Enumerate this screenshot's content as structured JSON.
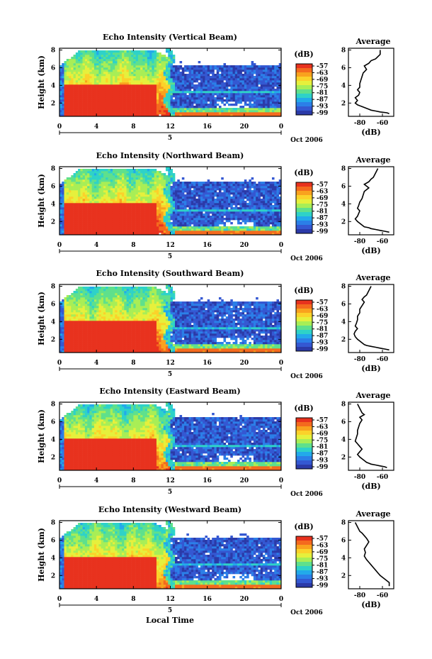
{
  "figure": {
    "xlabel": "Local Time",
    "date_label": "Oct 2006",
    "day_label": "5"
  },
  "colorbar": {
    "unit": "(dB)",
    "ticks": [
      "-57",
      "-63",
      "-69",
      "-75",
      "-81",
      "-87",
      "-93",
      "-99"
    ],
    "colors": [
      "#e8321e",
      "#f46a1e",
      "#f9a21e",
      "#fbd22a",
      "#e6f03c",
      "#a8ee56",
      "#5fe08c",
      "#2ed2c8",
      "#22aaea",
      "#2b7fe8",
      "#3458d2",
      "#2b3aa8"
    ]
  },
  "chart_data": [
    {
      "type": "heatmap",
      "title": "Echo Intensity (Vertical Beam)",
      "ylabel": "Height (km)",
      "x_ticks": [
        "0",
        "4",
        "8",
        "12",
        "16",
        "20",
        "0"
      ],
      "y_ticks": [
        "8",
        "6",
        "4",
        "2"
      ],
      "xlim": [
        0,
        24
      ],
      "ylim": [
        0.5,
        8.2
      ],
      "profile": {
        "title": "Average",
        "xlabel": "(dB)",
        "x_ticks": [
          "-80",
          "-60"
        ],
        "y_ticks": [
          "8",
          "6",
          "4",
          "2"
        ],
        "xlim": [
          -90,
          -50
        ],
        "ylim": [
          0.5,
          8.2
        ],
        "x": [
          -62,
          -62,
          -66,
          -70,
          -72,
          -76,
          -74,
          -77,
          -78,
          -79,
          -80,
          -80,
          -82,
          -80,
          -81,
          -84,
          -82,
          -84,
          -82,
          -78,
          -74,
          -72,
          -70,
          -66,
          -62,
          -56,
          -54
        ],
        "y": [
          8.0,
          7.5,
          7.0,
          6.8,
          6.5,
          6.2,
          5.8,
          5.4,
          5.0,
          4.6,
          4.2,
          3.8,
          3.5,
          3.2,
          2.9,
          2.6,
          2.3,
          2.0,
          1.8,
          1.6,
          1.4,
          1.3,
          1.2,
          1.1,
          1.0,
          0.9,
          0.8
        ]
      }
    },
    {
      "type": "heatmap",
      "title": "Echo Intensity (Northward Beam)",
      "ylabel": "Height (km)",
      "x_ticks": [
        "0",
        "4",
        "8",
        "12",
        "16",
        "20",
        "0"
      ],
      "y_ticks": [
        "8",
        "6",
        "4",
        "2"
      ],
      "xlim": [
        0,
        24
      ],
      "ylim": [
        0.5,
        8.2
      ],
      "profile": {
        "title": "Average",
        "xlabel": "(dB)",
        "x_ticks": [
          "-80",
          "-60"
        ],
        "y_ticks": [
          "8",
          "6",
          "4",
          "2"
        ],
        "xlim": [
          -90,
          -50
        ],
        "ylim": [
          0.5,
          8.2
        ],
        "x": [
          -64,
          -66,
          -68,
          -70,
          -72,
          -76,
          -72,
          -76,
          -77,
          -78,
          -80,
          -81,
          -82,
          -80,
          -81,
          -82,
          -84,
          -82,
          -80,
          -78,
          -76,
          -72,
          -70,
          -66,
          -62,
          -58,
          -54
        ],
        "y": [
          8.0,
          7.5,
          7.0,
          6.8,
          6.5,
          6.2,
          5.8,
          5.4,
          5.0,
          4.6,
          4.2,
          3.8,
          3.5,
          3.2,
          2.9,
          2.6,
          2.3,
          2.0,
          1.8,
          1.6,
          1.4,
          1.3,
          1.2,
          1.1,
          1.0,
          0.9,
          0.8
        ]
      }
    },
    {
      "type": "heatmap",
      "title": "Echo Intensity (Southward Beam)",
      "ylabel": "Height (km)",
      "x_ticks": [
        "0",
        "4",
        "8",
        "12",
        "16",
        "20",
        "0"
      ],
      "y_ticks": [
        "8",
        "6",
        "4",
        "2"
      ],
      "xlim": [
        0,
        24
      ],
      "ylim": [
        0.5,
        8.2
      ],
      "profile": {
        "title": "Average",
        "xlabel": "(dB)",
        "x_ticks": [
          "-80",
          "-60"
        ],
        "y_ticks": [
          "8",
          "6",
          "4",
          "2"
        ],
        "xlim": [
          -90,
          -50
        ],
        "ylim": [
          0.5,
          8.2
        ],
        "x": [
          -70,
          -72,
          -74,
          -76,
          -78,
          -76,
          -78,
          -80,
          -80,
          -82,
          -82,
          -83,
          -84,
          -82,
          -84,
          -85,
          -84,
          -82,
          -80,
          -78,
          -76,
          -74,
          -70,
          -66,
          -62,
          -58,
          -54
        ],
        "y": [
          8.0,
          7.5,
          7.0,
          6.8,
          6.5,
          6.2,
          5.8,
          5.4,
          5.0,
          4.6,
          4.2,
          3.8,
          3.5,
          3.2,
          2.9,
          2.6,
          2.3,
          2.0,
          1.8,
          1.6,
          1.4,
          1.3,
          1.2,
          1.1,
          1.0,
          0.9,
          0.8
        ]
      }
    },
    {
      "type": "heatmap",
      "title": "Echo Intensity (Eastward Beam)",
      "ylabel": "Height (km)",
      "x_ticks": [
        "0",
        "4",
        "8",
        "12",
        "16",
        "20",
        "0"
      ],
      "y_ticks": [
        "8",
        "6",
        "4",
        "2"
      ],
      "xlim": [
        0,
        24
      ],
      "ylim": [
        0.5,
        8.2
      ],
      "profile": {
        "title": "Average",
        "xlabel": "(dB)",
        "x_ticks": [
          "-80",
          "-60"
        ],
        "y_ticks": [
          "8",
          "6",
          "4",
          "2"
        ],
        "xlim": [
          -90,
          -50
        ],
        "ylim": [
          0.5,
          8.2
        ],
        "x": [
          -82,
          -80,
          -78,
          -76,
          -80,
          -78,
          -80,
          -81,
          -82,
          -82,
          -83,
          -84,
          -82,
          -80,
          -78,
          -80,
          -82,
          -80,
          -78,
          -76,
          -74,
          -72,
          -70,
          -66,
          -62,
          -58,
          -56
        ],
        "y": [
          8.0,
          7.5,
          7.0,
          6.8,
          6.5,
          6.2,
          5.8,
          5.4,
          5.0,
          4.6,
          4.2,
          3.8,
          3.5,
          3.2,
          2.9,
          2.6,
          2.3,
          2.0,
          1.8,
          1.6,
          1.4,
          1.3,
          1.2,
          1.1,
          1.0,
          0.9,
          0.8
        ]
      }
    },
    {
      "type": "heatmap",
      "title": "Echo Intensity (Westward Beam)",
      "ylabel": "Height (km)",
      "x_ticks": [
        "0",
        "4",
        "8",
        "12",
        "16",
        "20",
        "0"
      ],
      "y_ticks": [
        "8",
        "6",
        "4",
        "2"
      ],
      "xlim": [
        0,
        24
      ],
      "ylim": [
        0.5,
        8.2
      ],
      "profile": {
        "title": "Average",
        "xlabel": "(dB)",
        "x_ticks": [
          "-80",
          "-60"
        ],
        "y_ticks": [
          "8",
          "6",
          "4",
          "2"
        ],
        "xlim": [
          -90,
          -50
        ],
        "ylim": [
          0.5,
          8.2
        ],
        "x": [
          -84,
          -82,
          -80,
          -78,
          -76,
          -74,
          -72,
          -74,
          -76,
          -75,
          -76,
          -74,
          -72,
          -70,
          -68,
          -66,
          -64,
          -62,
          -60,
          -58,
          -56,
          -55,
          -54,
          -54,
          -54,
          -54,
          -54
        ],
        "y": [
          8.0,
          7.5,
          7.0,
          6.8,
          6.5,
          6.2,
          5.8,
          5.4,
          5.0,
          4.6,
          4.2,
          3.8,
          3.5,
          3.2,
          2.9,
          2.6,
          2.3,
          2.0,
          1.8,
          1.6,
          1.4,
          1.3,
          1.2,
          1.1,
          1.0,
          0.9,
          0.8
        ]
      }
    }
  ]
}
